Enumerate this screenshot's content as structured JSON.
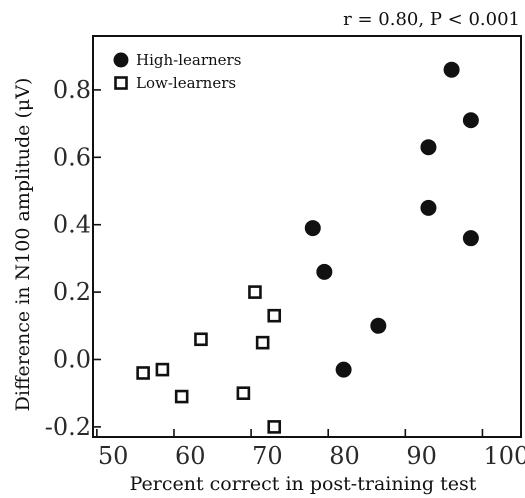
{
  "chart_data": {
    "type": "scatter",
    "annotation": "r = 0.80, P < 0.001",
    "xlabel": "Percent correct in post-training test",
    "ylabel": "Difference in N100 amplitude (μV)",
    "xlim": [
      49.5,
      105
    ],
    "ylim": [
      -0.23,
      0.96
    ],
    "x_ticks": [
      50,
      60,
      70,
      80,
      90,
      100
    ],
    "x_tick_labels": [
      "50",
      "60",
      "70",
      "80",
      "90",
      "100"
    ],
    "y_ticks": [
      -0.2,
      0.0,
      0.2,
      0.4,
      0.6,
      0.8
    ],
    "y_tick_labels": [
      "-0.2",
      "0.0",
      "0.2",
      "0.4",
      "0.6",
      "0.8"
    ],
    "legend_position": "top-left",
    "grid": false,
    "series": [
      {
        "name": "High-learners",
        "marker": "filled-circle",
        "color": "#111111",
        "points": [
          {
            "x": 78,
            "y": 0.39
          },
          {
            "x": 79.5,
            "y": 0.26
          },
          {
            "x": 82,
            "y": -0.03
          },
          {
            "x": 86.5,
            "y": 0.1
          },
          {
            "x": 93,
            "y": 0.63
          },
          {
            "x": 93,
            "y": 0.45
          },
          {
            "x": 96,
            "y": 0.86
          },
          {
            "x": 98.5,
            "y": 0.71
          },
          {
            "x": 98.5,
            "y": 0.36
          }
        ]
      },
      {
        "name": "Low-learners",
        "marker": "open-square",
        "color": "#111111",
        "points": [
          {
            "x": 56,
            "y": -0.04
          },
          {
            "x": 58.5,
            "y": -0.03
          },
          {
            "x": 61,
            "y": -0.11
          },
          {
            "x": 63.5,
            "y": 0.06
          },
          {
            "x": 69,
            "y": -0.1
          },
          {
            "x": 70.5,
            "y": 0.2
          },
          {
            "x": 71.5,
            "y": 0.05
          },
          {
            "x": 73,
            "y": 0.13
          },
          {
            "x": 73,
            "y": -0.2
          }
        ]
      }
    ]
  }
}
